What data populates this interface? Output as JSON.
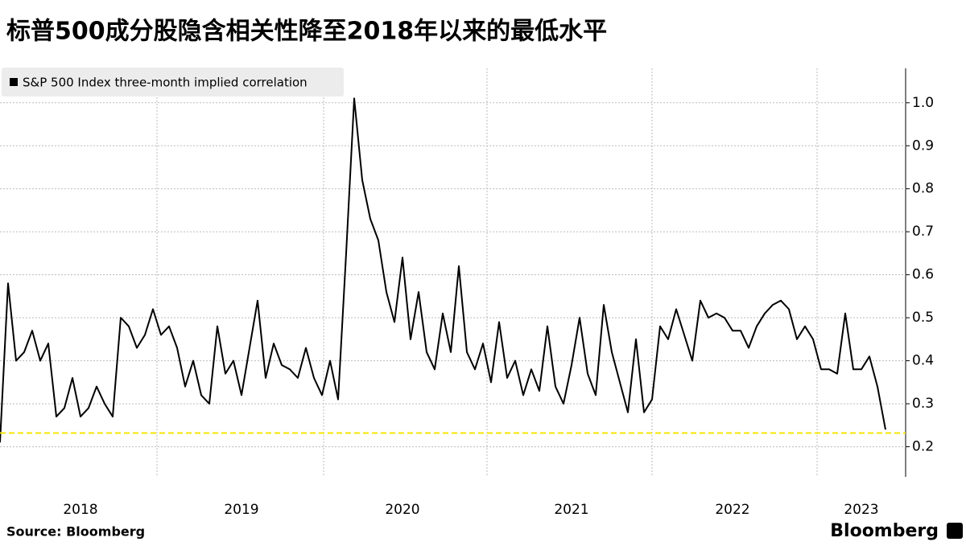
{
  "chart_data": {
    "type": "line",
    "title": "标普500成分股隐含相关性降至2018年以来的最低水平",
    "source": "Source:  Bloomberg",
    "brand": "Bloomberg",
    "categories": [
      null,
      null,
      null,
      null,
      null,
      null,
      null,
      null,
      null,
      null,
      "2018",
      null,
      null,
      null,
      null,
      null,
      null,
      null,
      null,
      null,
      null,
      null,
      null,
      null,
      null,
      null,
      null,
      null,
      null,
      null,
      "2019",
      null,
      null,
      null,
      null,
      null,
      null,
      null,
      null,
      null,
      null,
      null,
      null,
      null,
      null,
      null,
      null,
      null,
      null,
      null,
      "2020",
      null,
      null,
      null,
      null,
      null,
      null,
      null,
      null,
      null,
      null,
      null,
      null,
      null,
      null,
      null,
      null,
      null,
      null,
      null,
      null,
      "2021",
      null,
      null,
      null,
      null,
      null,
      null,
      null,
      null,
      null,
      null,
      null,
      null,
      null,
      null,
      null,
      null,
      null,
      null,
      null,
      "2022",
      null,
      null,
      null,
      null,
      null,
      null,
      null,
      null,
      null,
      null,
      null,
      null,
      null,
      null,
      null,
      "2023",
      null,
      null,
      null
    ],
    "series": [
      {
        "name": "S&P 500 Index three-month implied correlation",
        "color": "#000000",
        "values": [
          0.21,
          0.58,
          0.4,
          0.42,
          0.47,
          0.4,
          0.44,
          0.27,
          0.29,
          0.36,
          0.27,
          0.29,
          0.34,
          0.3,
          0.27,
          0.5,
          0.48,
          0.43,
          0.46,
          0.52,
          0.46,
          0.48,
          0.43,
          0.34,
          0.4,
          0.32,
          0.3,
          0.48,
          0.37,
          0.4,
          0.32,
          0.43,
          0.54,
          0.36,
          0.44,
          0.39,
          0.38,
          0.36,
          0.43,
          0.36,
          0.32,
          0.4,
          0.31,
          0.65,
          1.01,
          0.82,
          0.73,
          0.68,
          0.56,
          0.49,
          0.64,
          0.45,
          0.56,
          0.42,
          0.38,
          0.51,
          0.42,
          0.62,
          0.42,
          0.38,
          0.44,
          0.35,
          0.49,
          0.36,
          0.4,
          0.32,
          0.38,
          0.33,
          0.48,
          0.34,
          0.3,
          0.39,
          0.5,
          0.37,
          0.32,
          0.53,
          0.42,
          0.35,
          0.28,
          0.45,
          0.28,
          0.31,
          0.48,
          0.45,
          0.52,
          0.46,
          0.4,
          0.54,
          0.5,
          0.51,
          0.5,
          0.47,
          0.47,
          0.43,
          0.48,
          0.51,
          0.53,
          0.54,
          0.52,
          0.45,
          0.48,
          0.45,
          0.38,
          0.38,
          0.37,
          0.51,
          0.38,
          0.38,
          0.41,
          0.34,
          0.24
        ]
      }
    ],
    "reference_line": {
      "value": 0.232,
      "color": "#f5e400"
    },
    "ylim": [
      0.13,
      1.08
    ],
    "yticks": [
      0.2,
      0.3,
      0.4,
      0.5,
      0.6,
      0.7,
      0.8,
      0.9,
      {
        "value": 1,
        "label": "1.0"
      }
    ],
    "grid": true
  }
}
